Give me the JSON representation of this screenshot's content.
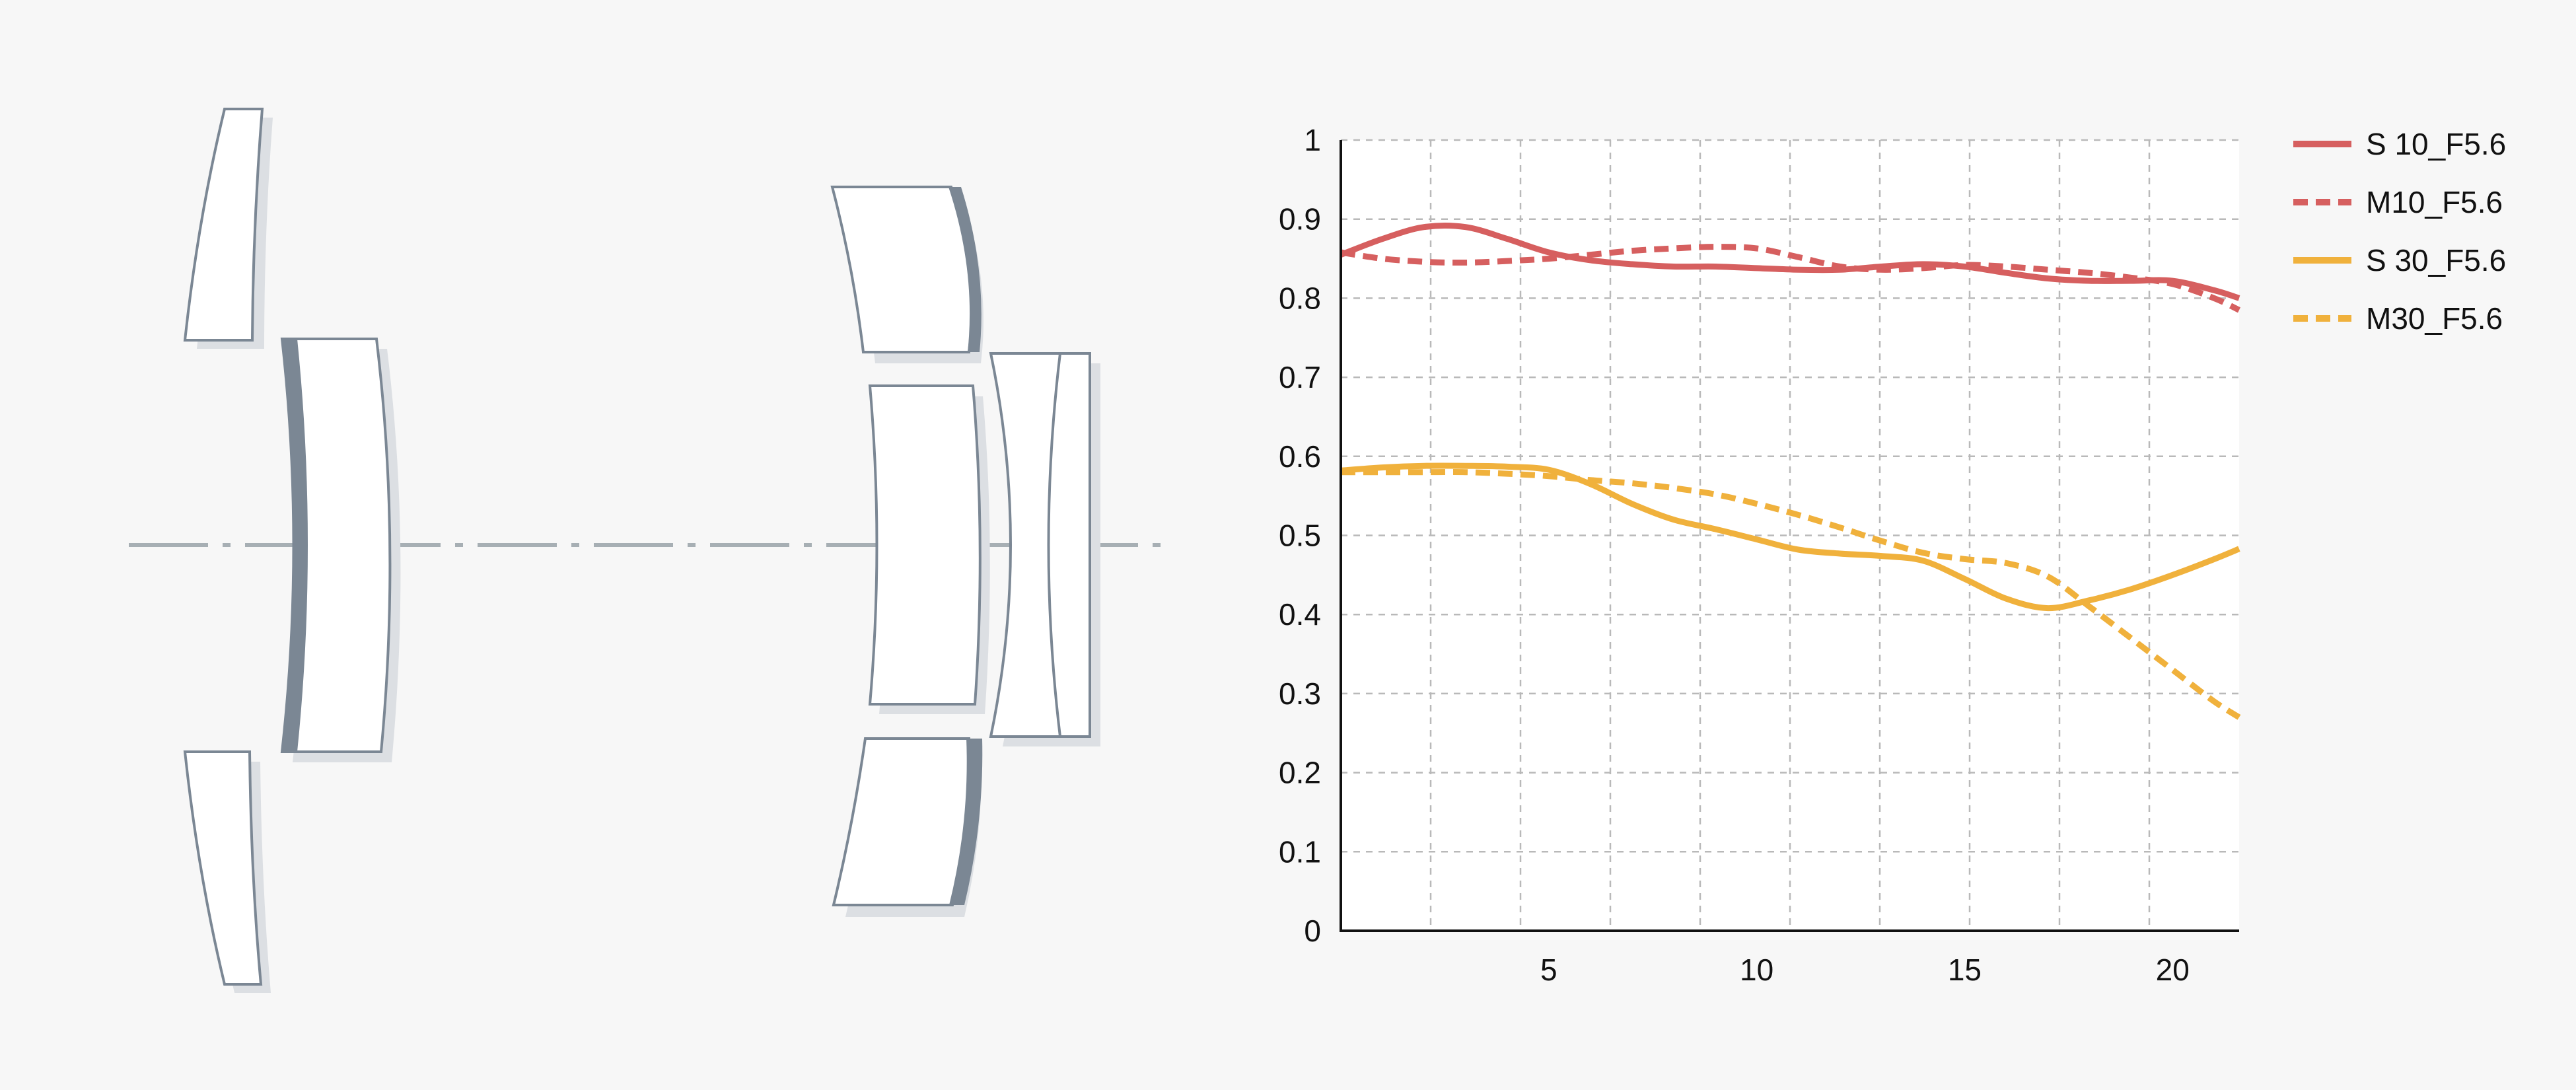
{
  "chart_data": {
    "type": "line",
    "title": "",
    "xlabel": "",
    "ylabel": "",
    "xlim": [
      0,
      21.6
    ],
    "ylim": [
      0,
      1
    ],
    "x_ticks": [
      5,
      10,
      15,
      20
    ],
    "y_ticks": [
      0,
      0.1,
      0.2,
      0.3,
      0.4,
      0.5,
      0.6,
      0.7,
      0.8,
      0.9,
      1
    ],
    "y_tick_labels": [
      "0",
      "0.1",
      "0.2",
      "0.3",
      "0.4",
      "0.5",
      "0.6",
      "0.7",
      "0.8",
      "0.9",
      "1"
    ],
    "grid": true,
    "legend_position": "right",
    "series": [
      {
        "name": "S 10_F5.6",
        "color": "#d65f5f",
        "style": "solid",
        "x": [
          0,
          1,
          2,
          3,
          4,
          5,
          6,
          7,
          8,
          9,
          10,
          11,
          12,
          13,
          14,
          15,
          16,
          17,
          18,
          19,
          20,
          21,
          21.6
        ],
        "y": [
          0.855,
          0.875,
          0.89,
          0.89,
          0.875,
          0.858,
          0.848,
          0.843,
          0.84,
          0.84,
          0.838,
          0.836,
          0.836,
          0.84,
          0.843,
          0.84,
          0.832,
          0.825,
          0.822,
          0.822,
          0.822,
          0.81,
          0.8
        ]
      },
      {
        "name": "M10_F5.6",
        "color": "#d65f5f",
        "style": "dashed",
        "x": [
          0,
          1,
          2,
          3,
          4,
          5,
          6,
          7,
          8,
          9,
          10,
          11,
          12,
          13,
          14,
          15,
          16,
          17,
          18,
          19,
          20,
          21,
          21.6
        ],
        "y": [
          0.858,
          0.85,
          0.846,
          0.845,
          0.847,
          0.85,
          0.855,
          0.86,
          0.863,
          0.865,
          0.863,
          0.852,
          0.84,
          0.836,
          0.838,
          0.842,
          0.84,
          0.836,
          0.832,
          0.826,
          0.818,
          0.8,
          0.785
        ]
      },
      {
        "name": "S 30_F5.6",
        "color": "#f0b13c",
        "style": "solid",
        "x": [
          0,
          1,
          2,
          3,
          4,
          5,
          6,
          7,
          8,
          9,
          10,
          11,
          12,
          13,
          14,
          15,
          16,
          17,
          18,
          19,
          20,
          21,
          21.6
        ],
        "y": [
          0.582,
          0.586,
          0.588,
          0.588,
          0.587,
          0.583,
          0.565,
          0.54,
          0.52,
          0.508,
          0.495,
          0.482,
          0.477,
          0.474,
          0.468,
          0.445,
          0.42,
          0.408,
          0.418,
          0.432,
          0.45,
          0.47,
          0.483
        ]
      },
      {
        "name": "M30_F5.6",
        "color": "#f0b13c",
        "style": "dashed",
        "x": [
          0,
          1,
          2,
          3,
          4,
          5,
          6,
          7,
          8,
          9,
          10,
          11,
          12,
          13,
          14,
          15,
          16,
          17,
          18,
          19,
          20,
          21,
          21.6
        ],
        "y": [
          0.58,
          0.58,
          0.58,
          0.58,
          0.578,
          0.575,
          0.57,
          0.566,
          0.56,
          0.552,
          0.54,
          0.526,
          0.51,
          0.493,
          0.478,
          0.47,
          0.465,
          0.448,
          0.41,
          0.37,
          0.33,
          0.29,
          0.27
        ]
      }
    ]
  },
  "diagram": {
    "elements": [
      "front-lens-top",
      "front-lens-main",
      "front-lens-bottom",
      "rear-lens-top",
      "rear-lens-main",
      "rear-lens-bottom",
      "rear-doublet"
    ]
  }
}
